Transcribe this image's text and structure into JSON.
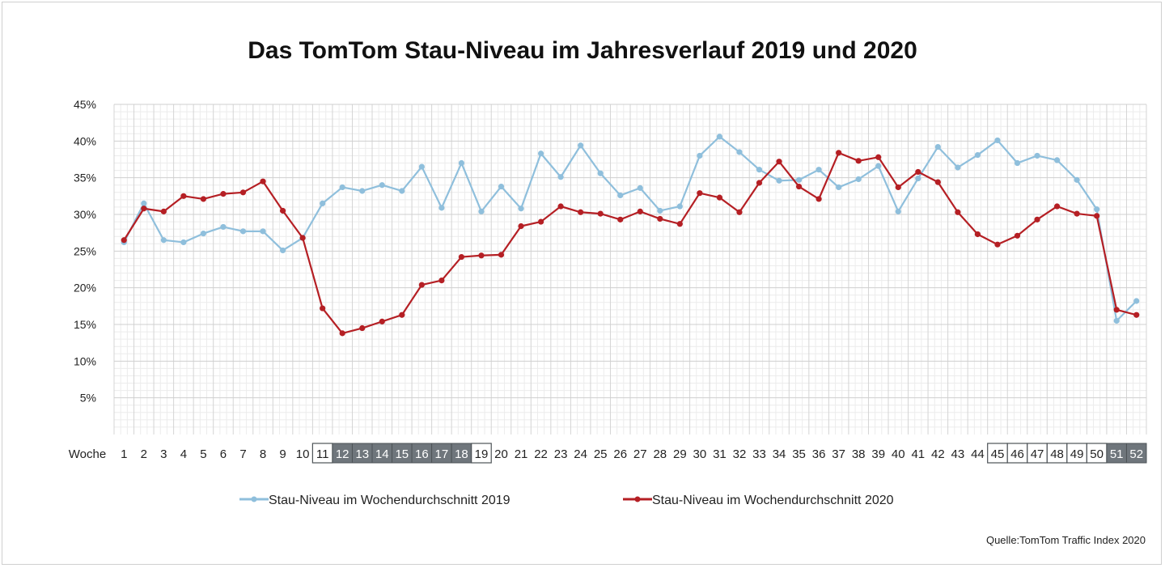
{
  "chart_data": {
    "type": "line",
    "title": "Das TomTom Stau-Niveau im Jahresverlauf 2019 und 2020",
    "xlabel": "Woche",
    "ylabel": "",
    "x": [
      1,
      2,
      3,
      4,
      5,
      6,
      7,
      8,
      9,
      10,
      11,
      12,
      13,
      14,
      15,
      16,
      17,
      18,
      19,
      20,
      21,
      22,
      23,
      24,
      25,
      26,
      27,
      28,
      29,
      30,
      31,
      32,
      33,
      34,
      35,
      36,
      37,
      38,
      39,
      40,
      41,
      42,
      43,
      44,
      45,
      46,
      47,
      48,
      49,
      50,
      51,
      52
    ],
    "ylim": [
      0,
      45
    ],
    "yticks": [
      {
        "value": 5,
        "label": "5%"
      },
      {
        "value": 10,
        "label": "10%"
      },
      {
        "value": 15,
        "label": "15%"
      },
      {
        "value": 20,
        "label": "20%"
      },
      {
        "value": 25,
        "label": "25%"
      },
      {
        "value": 30,
        "label": "30%"
      },
      {
        "value": 35,
        "label": "35%"
      },
      {
        "value": 40,
        "label": "40%"
      },
      {
        "value": 45,
        "label": "45%"
      }
    ],
    "grid": true,
    "legend_position": "bottom",
    "series": [
      {
        "name": "Stau-Niveau im Wochendurchschnitt 2019",
        "color": "#8fbfdc",
        "values": [
          26.2,
          31.5,
          26.5,
          26.2,
          27.4,
          28.3,
          27.7,
          27.7,
          25.1,
          26.8,
          31.5,
          33.7,
          33.2,
          34.0,
          33.2,
          36.5,
          30.9,
          37.0,
          30.4,
          33.8,
          30.8,
          38.3,
          35.1,
          39.4,
          35.6,
          32.6,
          33.6,
          30.5,
          31.1,
          38.0,
          40.6,
          38.5,
          36.1,
          34.6,
          34.7,
          36.1,
          33.7,
          34.8,
          36.6,
          30.4,
          34.9,
          39.2,
          36.4,
          38.1,
          40.1,
          37.0,
          38.0,
          37.4,
          34.7,
          30.7,
          15.5,
          18.2
        ]
      },
      {
        "name": "Stau-Niveau im Wochendurchschnitt 2020",
        "color": "#b51f24",
        "values": [
          26.5,
          30.8,
          30.4,
          32.5,
          32.1,
          32.8,
          33.0,
          34.5,
          30.5,
          26.8,
          17.2,
          13.8,
          14.5,
          15.4,
          16.3,
          20.4,
          21.0,
          24.2,
          24.4,
          24.5,
          28.4,
          29.0,
          31.1,
          30.3,
          30.1,
          29.3,
          30.4,
          29.4,
          28.7,
          32.9,
          32.3,
          30.3,
          34.3,
          37.2,
          33.8,
          32.1,
          38.4,
          37.3,
          37.8,
          33.7,
          35.8,
          34.4,
          30.3,
          27.3,
          25.9,
          27.1,
          29.3,
          31.1,
          30.1,
          29.8,
          17.0,
          16.3
        ]
      }
    ],
    "highlighted_weeks": {
      "outlined": [
        11,
        19,
        45,
        46,
        47,
        48,
        49,
        50
      ],
      "shaded": [
        12,
        13,
        14,
        15,
        16,
        17,
        18,
        51,
        52
      ]
    },
    "source": "Quelle:TomTom Traffic Index 2020"
  }
}
